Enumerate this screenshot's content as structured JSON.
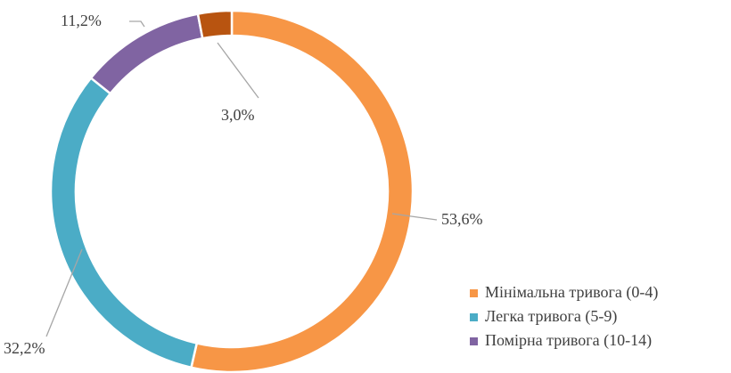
{
  "chart_data": {
    "type": "donut",
    "categories": [
      "Мінімальна тривога (0-4)",
      "Легка тривога (5-9)",
      "Помірна тривога (10-14)",
      null
    ],
    "values": [
      53.6,
      32.2,
      11.2,
      3.0
    ],
    "value_labels": [
      "53,6%",
      "32,2%",
      "11,2%",
      "3,0%"
    ],
    "colors": [
      "#f79646",
      "#4bacc6",
      "#8064a2",
      "#b85410"
    ],
    "legend": "bottom-right"
  }
}
